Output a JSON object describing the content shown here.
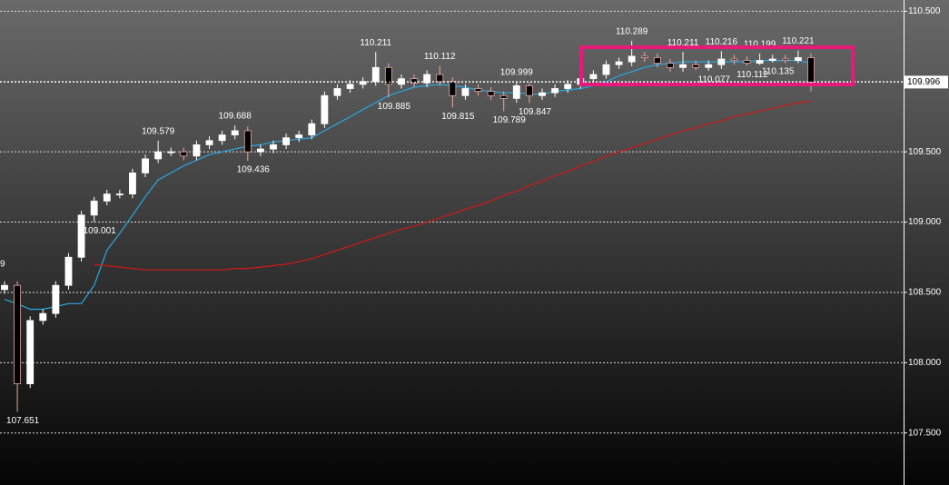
{
  "chart_data": {
    "type": "candlestick",
    "ylim": [
      107.13,
      110.58
    ],
    "yticks": [
      {
        "value": 110.5,
        "label": "110.500"
      },
      {
        "value": 110,
        "label": "110.000"
      },
      {
        "value": 109.5,
        "label": "109.500"
      },
      {
        "value": 109,
        "label": "109.000"
      },
      {
        "value": 108.5,
        "label": "108.500"
      },
      {
        "value": 108,
        "label": "108.000"
      },
      {
        "value": 107.5,
        "label": "107.500"
      }
    ],
    "grid": true,
    "last_price": 109.996,
    "cut_label": "9",
    "up_color": "#ffffff",
    "down_color": "#e8a8a8",
    "open": [
      108.52,
      108.55,
      107.85,
      108.3,
      108.35,
      108.55,
      108.75,
      109.05,
      109.15,
      109.2,
      109.2,
      109.35,
      109.45,
      109.5,
      109.5,
      109.47,
      109.55,
      109.58,
      109.62,
      109.65,
      109.5,
      109.52,
      109.55,
      109.6,
      109.62,
      109.7,
      109.9,
      109.95,
      109.98,
      110.0,
      110.1,
      109.98,
      110.02,
      109.99,
      110.05,
      110.0,
      109.9,
      109.95,
      109.93,
      109.9,
      109.88,
      109.97,
      109.9,
      109.92,
      109.95,
      109.98,
      110.02,
      110.05,
      110.12,
      110.14,
      110.18,
      110.17,
      110.13,
      110.1,
      110.12,
      110.1,
      110.12,
      110.16,
      110.15,
      110.13,
      110.15,
      110.16,
      110.15,
      110.17
    ],
    "high": [
      108.58,
      108.58,
      108.33,
      108.38,
      108.58,
      108.78,
      109.08,
      109.18,
      109.23,
      109.23,
      109.38,
      109.48,
      109.579,
      109.53,
      109.53,
      109.58,
      109.61,
      109.65,
      109.688,
      109.68,
      109.55,
      109.58,
      109.63,
      109.65,
      109.73,
      109.93,
      109.98,
      110.01,
      110.03,
      110.211,
      110.13,
      110.05,
      110.05,
      110.08,
      110.112,
      110.03,
      109.98,
      109.98,
      109.96,
      109.93,
      109.999,
      109.99,
      109.95,
      109.98,
      110.01,
      110.05,
      110.08,
      110.15,
      110.17,
      110.289,
      110.21,
      110.2,
      110.16,
      110.211,
      110.15,
      110.15,
      110.216,
      110.19,
      110.18,
      110.199,
      110.19,
      110.19,
      110.221,
      110.2
    ],
    "low": [
      108.49,
      107.651,
      107.82,
      108.27,
      108.32,
      108.52,
      108.72,
      109.001,
      109.12,
      109.17,
      109.17,
      109.32,
      109.42,
      109.47,
      109.44,
      109.44,
      109.52,
      109.55,
      109.59,
      109.436,
      109.47,
      109.49,
      109.52,
      109.57,
      109.59,
      109.67,
      109.87,
      109.92,
      109.95,
      109.97,
      109.885,
      109.95,
      109.96,
      109.96,
      109.97,
      109.815,
      109.87,
      109.9,
      109.87,
      109.789,
      109.85,
      109.847,
      109.87,
      109.89,
      109.92,
      109.95,
      109.99,
      110.02,
      110.09,
      110.11,
      110.14,
      110.1,
      110.07,
      110.07,
      110.08,
      110.077,
      110.09,
      110.12,
      110.112,
      110.12,
      110.135,
      110.13,
      110.13,
      109.93
    ],
    "close": [
      108.55,
      107.85,
      108.3,
      108.35,
      108.55,
      108.75,
      109.05,
      109.15,
      109.2,
      109.2,
      109.35,
      109.45,
      109.5,
      109.5,
      109.47,
      109.55,
      109.58,
      109.62,
      109.65,
      109.5,
      109.52,
      109.55,
      109.6,
      109.62,
      109.7,
      109.9,
      109.95,
      109.98,
      110.0,
      110.1,
      109.98,
      110.02,
      109.99,
      110.05,
      110.0,
      109.9,
      109.95,
      109.93,
      109.9,
      109.88,
      109.97,
      109.9,
      109.92,
      109.95,
      109.98,
      110.02,
      110.05,
      110.12,
      110.14,
      110.18,
      110.17,
      110.13,
      110.1,
      110.12,
      110.1,
      110.12,
      110.16,
      110.15,
      110.13,
      110.15,
      110.16,
      110.15,
      110.17,
      109.996
    ],
    "high_labels": [
      null,
      null,
      null,
      null,
      null,
      null,
      null,
      null,
      null,
      null,
      null,
      null,
      "109.579",
      null,
      null,
      null,
      null,
      null,
      "109.688",
      null,
      null,
      null,
      null,
      null,
      null,
      null,
      null,
      null,
      null,
      "110.211",
      null,
      null,
      null,
      null,
      "110.112",
      null,
      null,
      null,
      null,
      null,
      "109.999",
      null,
      null,
      null,
      null,
      null,
      null,
      null,
      null,
      "110.289",
      null,
      null,
      null,
      "110.211",
      null,
      null,
      "110.216",
      null,
      null,
      "110.199",
      null,
      null,
      "110.221",
      null
    ],
    "low_labels": [
      null,
      "107.651",
      null,
      null,
      null,
      null,
      null,
      "109.001",
      null,
      null,
      null,
      null,
      null,
      null,
      null,
      null,
      null,
      null,
      null,
      "109.436",
      null,
      null,
      null,
      null,
      null,
      null,
      null,
      null,
      null,
      null,
      "109.885",
      null,
      null,
      null,
      null,
      "109.815",
      null,
      null,
      null,
      "109.789",
      null,
      "109.847",
      null,
      null,
      null,
      null,
      null,
      null,
      null,
      null,
      null,
      null,
      null,
      null,
      null,
      "110.077",
      null,
      null,
      "110.112",
      null,
      "110.135",
      null,
      null,
      null
    ],
    "series": [
      {
        "color": "#29a8e0",
        "values": [
          108.45,
          108.42,
          108.38,
          108.38,
          108.4,
          108.42,
          108.42,
          108.55,
          108.8,
          108.92,
          109.05,
          109.18,
          109.3,
          109.35,
          109.4,
          109.44,
          109.48,
          109.5,
          109.52,
          109.54,
          109.55,
          109.57,
          109.58,
          109.59,
          109.6,
          109.65,
          109.7,
          109.75,
          109.8,
          109.85,
          109.9,
          109.93,
          109.96,
          109.97,
          109.98,
          109.97,
          109.96,
          109.94,
          109.93,
          109.92,
          109.92,
          109.91,
          109.91,
          109.93,
          109.94,
          109.95,
          109.97,
          110.0,
          110.04,
          110.07,
          110.1,
          110.12,
          110.13,
          110.14,
          110.14,
          110.14,
          110.14,
          110.14,
          110.14,
          110.15,
          110.15,
          110.15,
          110.15,
          110.13
        ]
      },
      {
        "color": "#d01818",
        "values": [
          null,
          null,
          null,
          null,
          null,
          null,
          null,
          108.7,
          108.69,
          108.68,
          108.67,
          108.66,
          108.66,
          108.66,
          108.66,
          108.66,
          108.66,
          108.66,
          108.67,
          108.67,
          108.68,
          108.69,
          108.7,
          108.72,
          108.74,
          108.77,
          108.8,
          108.83,
          108.86,
          108.89,
          108.92,
          108.95,
          108.97,
          109.0,
          109.03,
          109.06,
          109.09,
          109.12,
          109.15,
          109.19,
          109.22,
          109.26,
          109.29,
          109.33,
          109.36,
          109.4,
          109.43,
          109.47,
          109.5,
          109.53,
          109.56,
          109.59,
          109.62,
          109.65,
          109.67,
          109.7,
          109.72,
          109.75,
          109.77,
          109.79,
          109.81,
          109.83,
          109.85,
          109.86
        ]
      }
    ]
  }
}
